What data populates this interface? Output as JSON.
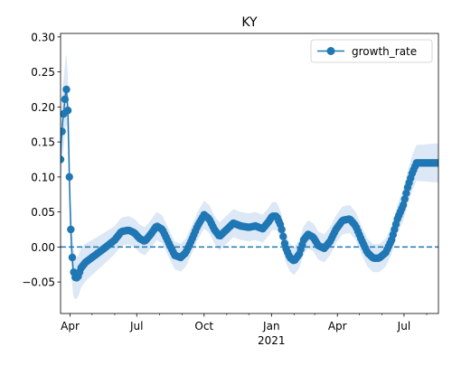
{
  "chart_data": {
    "type": "line",
    "title": "KY",
    "xlabel": "",
    "ylabel": "",
    "x_axis_type": "date",
    "xlim": [
      "2020-03-19",
      "2021-08-17"
    ],
    "ylim": [
      -0.095,
      0.305
    ],
    "yticks": [
      -0.05,
      0.0,
      0.05,
      0.1,
      0.15,
      0.2,
      0.25,
      0.3
    ],
    "ytick_labels": [
      "−0.05",
      "0.00",
      "0.05",
      "0.10",
      "0.15",
      "0.20",
      "0.25",
      "0.30"
    ],
    "xticks": [
      {
        "date": "2020-04-01",
        "label": "Apr",
        "sublabel": ""
      },
      {
        "date": "2020-07-01",
        "label": "Jul",
        "sublabel": ""
      },
      {
        "date": "2020-10-01",
        "label": "Oct",
        "sublabel": ""
      },
      {
        "date": "2021-01-01",
        "label": "Jan",
        "sublabel": "2021"
      },
      {
        "date": "2021-04-01",
        "label": "Apr",
        "sublabel": ""
      },
      {
        "date": "2021-07-01",
        "label": "Jul",
        "sublabel": ""
      }
    ],
    "minor_xticks": [
      "2020-05-01",
      "2020-06-01",
      "2020-08-01",
      "2020-09-01",
      "2020-11-01",
      "2020-12-01",
      "2021-02-01",
      "2021-03-01",
      "2021-05-01",
      "2021-06-01",
      "2021-08-01"
    ],
    "reference_line": {
      "y": 0.0,
      "style": "dashed",
      "color": "#1f77b4"
    },
    "band_halfwidth": [
      [
        "2020-03-19",
        0.05
      ],
      [
        "2020-03-30",
        0.05
      ],
      [
        "2020-04-08",
        0.03
      ],
      [
        "2020-05-01",
        0.025
      ],
      [
        "2020-06-01",
        0.02
      ],
      [
        "2021-06-20",
        0.02
      ],
      [
        "2021-07-10",
        0.025
      ],
      [
        "2021-08-17",
        0.028
      ]
    ],
    "series": [
      {
        "name": "growth_rate",
        "color": "#1f77b4",
        "marker": "circle",
        "points": [
          [
            "2020-03-19",
            0.125
          ],
          [
            "2020-03-20",
            0.15
          ],
          [
            "2020-03-22",
            0.18
          ],
          [
            "2020-03-24",
            0.2
          ],
          [
            "2020-03-26",
            0.222
          ],
          [
            "2020-03-27",
            0.225
          ],
          [
            "2020-03-28",
            0.21
          ],
          [
            "2020-03-29",
            0.195
          ],
          [
            "2020-03-30",
            0.15
          ],
          [
            "2020-03-31",
            0.1
          ],
          [
            "2020-04-01",
            0.06
          ],
          [
            "2020-04-02",
            0.025
          ],
          [
            "2020-04-03",
            0.0
          ],
          [
            "2020-04-05",
            -0.03
          ],
          [
            "2020-04-07",
            -0.042
          ],
          [
            "2020-04-09",
            -0.045
          ],
          [
            "2020-04-12",
            -0.042
          ],
          [
            "2020-04-16",
            -0.03
          ],
          [
            "2020-04-22",
            -0.022
          ],
          [
            "2020-05-01",
            -0.015
          ],
          [
            "2020-05-10",
            -0.008
          ],
          [
            "2020-05-20",
            0.0
          ],
          [
            "2020-06-01",
            0.01
          ],
          [
            "2020-06-10",
            0.022
          ],
          [
            "2020-06-20",
            0.024
          ],
          [
            "2020-06-28",
            0.02
          ],
          [
            "2020-07-05",
            0.012
          ],
          [
            "2020-07-12",
            0.008
          ],
          [
            "2020-07-20",
            0.018
          ],
          [
            "2020-07-28",
            0.03
          ],
          [
            "2020-08-05",
            0.025
          ],
          [
            "2020-08-14",
            0.005
          ],
          [
            "2020-08-22",
            -0.012
          ],
          [
            "2020-08-30",
            -0.015
          ],
          [
            "2020-09-06",
            -0.008
          ],
          [
            "2020-09-14",
            0.01
          ],
          [
            "2020-09-22",
            0.03
          ],
          [
            "2020-10-01",
            0.046
          ],
          [
            "2020-10-08",
            0.04
          ],
          [
            "2020-10-15",
            0.025
          ],
          [
            "2020-10-22",
            0.015
          ],
          [
            "2020-11-01",
            0.025
          ],
          [
            "2020-11-10",
            0.034
          ],
          [
            "2020-11-20",
            0.03
          ],
          [
            "2020-12-01",
            0.028
          ],
          [
            "2020-12-10",
            0.03
          ],
          [
            "2020-12-20",
            0.026
          ],
          [
            "2020-12-28",
            0.036
          ],
          [
            "2021-01-02",
            0.044
          ],
          [
            "2021-01-08",
            0.044
          ],
          [
            "2021-01-14",
            0.03
          ],
          [
            "2021-01-20",
            0.0
          ],
          [
            "2021-01-26",
            -0.015
          ],
          [
            "2021-02-01",
            -0.02
          ],
          [
            "2021-02-08",
            -0.01
          ],
          [
            "2021-02-14",
            0.01
          ],
          [
            "2021-02-20",
            0.018
          ],
          [
            "2021-02-27",
            0.014
          ],
          [
            "2021-03-06",
            0.002
          ],
          [
            "2021-03-14",
            -0.002
          ],
          [
            "2021-03-22",
            0.008
          ],
          [
            "2021-03-30",
            0.025
          ],
          [
            "2021-04-08",
            0.038
          ],
          [
            "2021-04-18",
            0.04
          ],
          [
            "2021-04-26",
            0.03
          ],
          [
            "2021-05-04",
            0.01
          ],
          [
            "2021-05-12",
            -0.008
          ],
          [
            "2021-05-20",
            -0.016
          ],
          [
            "2021-05-28",
            -0.016
          ],
          [
            "2021-06-06",
            -0.008
          ],
          [
            "2021-06-14",
            0.01
          ],
          [
            "2021-06-22",
            0.04
          ],
          [
            "2021-06-30",
            0.06
          ],
          [
            "2021-07-06",
            0.085
          ],
          [
            "2021-07-12",
            0.105
          ],
          [
            "2021-07-18",
            0.12
          ],
          [
            "2021-08-17",
            0.12
          ]
        ]
      }
    ],
    "legend": {
      "entries": [
        "growth_rate"
      ],
      "placement": "upper right"
    },
    "colors": {
      "line": "#1f77b4",
      "band": "#dce8f5",
      "axes": "#000000",
      "background": "#ffffff"
    }
  }
}
